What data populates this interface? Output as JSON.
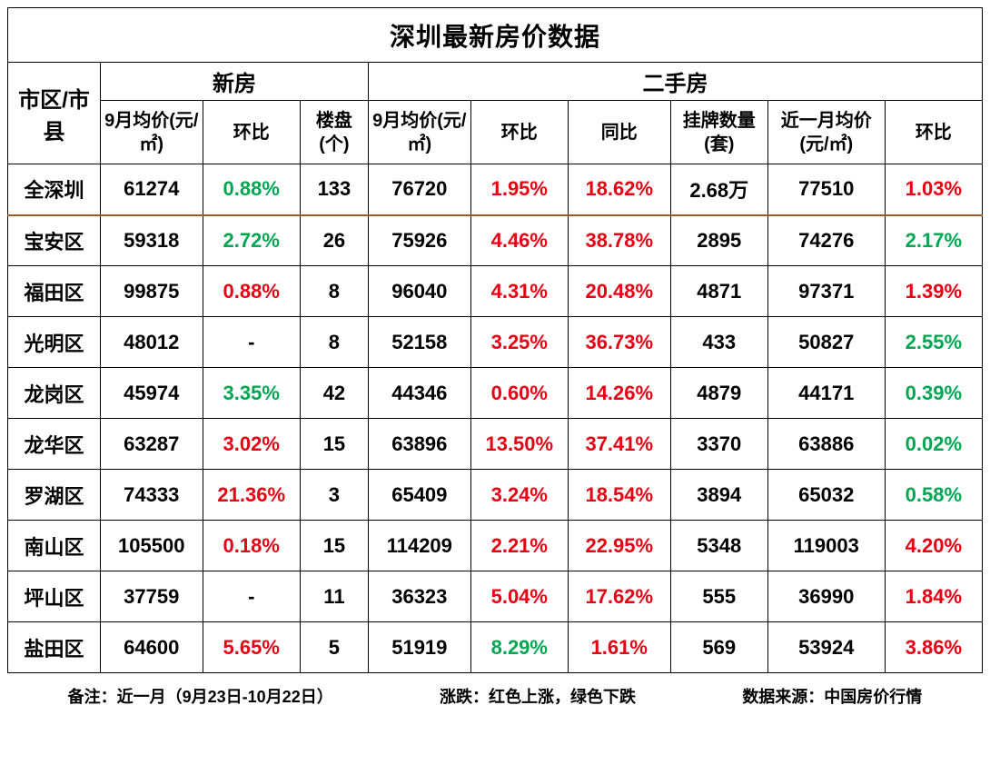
{
  "title": "深圳最新房价数据",
  "colors": {
    "up": "#e60012",
    "down": "#00a651",
    "text": "#000000",
    "border": "#000000",
    "bg": "#ffffff",
    "sep": "#9a5a2a"
  },
  "headers": {
    "district": "市区/市县",
    "group_new": "新房",
    "group_used": "二手房",
    "new_price": "9月均价(元/㎡)",
    "new_mom": "环比",
    "new_count": "楼盘(个)",
    "used_price": "9月均价(元/㎡)",
    "used_mom": "环比",
    "used_yoy": "同比",
    "used_listings": "挂牌数量(套)",
    "used_recent": "近一月均价(元/㎡)",
    "used_recent_mom": "环比"
  },
  "rows": [
    {
      "district": "全深圳",
      "new_price": "61274",
      "new_mom": {
        "v": "0.88%",
        "c": "down"
      },
      "new_count": "133",
      "used_price": "76720",
      "used_mom": {
        "v": "1.95%",
        "c": "up"
      },
      "used_yoy": {
        "v": "18.62%",
        "c": "up"
      },
      "used_listings": "2.68万",
      "used_recent": "77510",
      "used_recent_mom": {
        "v": "1.03%",
        "c": "up"
      }
    },
    {
      "district": "宝安区",
      "new_price": "59318",
      "new_mom": {
        "v": "2.72%",
        "c": "down"
      },
      "new_count": "26",
      "used_price": "75926",
      "used_mom": {
        "v": "4.46%",
        "c": "up"
      },
      "used_yoy": {
        "v": "38.78%",
        "c": "up"
      },
      "used_listings": "2895",
      "used_recent": "74276",
      "used_recent_mom": {
        "v": "2.17%",
        "c": "down"
      }
    },
    {
      "district": "福田区",
      "new_price": "99875",
      "new_mom": {
        "v": "0.88%",
        "c": "up"
      },
      "new_count": "8",
      "used_price": "96040",
      "used_mom": {
        "v": "4.31%",
        "c": "up"
      },
      "used_yoy": {
        "v": "20.48%",
        "c": "up"
      },
      "used_listings": "4871",
      "used_recent": "97371",
      "used_recent_mom": {
        "v": "1.39%",
        "c": "up"
      }
    },
    {
      "district": "光明区",
      "new_price": "48012",
      "new_mom": {
        "v": "-",
        "c": "text"
      },
      "new_count": "8",
      "used_price": "52158",
      "used_mom": {
        "v": "3.25%",
        "c": "up"
      },
      "used_yoy": {
        "v": "36.73%",
        "c": "up"
      },
      "used_listings": "433",
      "used_recent": "50827",
      "used_recent_mom": {
        "v": "2.55%",
        "c": "down"
      }
    },
    {
      "district": "龙岗区",
      "new_price": "45974",
      "new_mom": {
        "v": "3.35%",
        "c": "down"
      },
      "new_count": "42",
      "used_price": "44346",
      "used_mom": {
        "v": "0.60%",
        "c": "up"
      },
      "used_yoy": {
        "v": "14.26%",
        "c": "up"
      },
      "used_listings": "4879",
      "used_recent": "44171",
      "used_recent_mom": {
        "v": "0.39%",
        "c": "down"
      }
    },
    {
      "district": "龙华区",
      "new_price": "63287",
      "new_mom": {
        "v": "3.02%",
        "c": "up"
      },
      "new_count": "15",
      "used_price": "63896",
      "used_mom": {
        "v": "13.50%",
        "c": "up"
      },
      "used_yoy": {
        "v": "37.41%",
        "c": "up"
      },
      "used_listings": "3370",
      "used_recent": "63886",
      "used_recent_mom": {
        "v": "0.02%",
        "c": "down"
      }
    },
    {
      "district": "罗湖区",
      "new_price": "74333",
      "new_mom": {
        "v": "21.36%",
        "c": "up"
      },
      "new_count": "3",
      "used_price": "65409",
      "used_mom": {
        "v": "3.24%",
        "c": "up"
      },
      "used_yoy": {
        "v": "18.54%",
        "c": "up"
      },
      "used_listings": "3894",
      "used_recent": "65032",
      "used_recent_mom": {
        "v": "0.58%",
        "c": "down"
      }
    },
    {
      "district": "南山区",
      "new_price": "105500",
      "new_mom": {
        "v": "0.18%",
        "c": "up"
      },
      "new_count": "15",
      "used_price": "114209",
      "used_mom": {
        "v": "2.21%",
        "c": "up"
      },
      "used_yoy": {
        "v": "22.95%",
        "c": "up"
      },
      "used_listings": "5348",
      "used_recent": "119003",
      "used_recent_mom": {
        "v": "4.20%",
        "c": "up"
      }
    },
    {
      "district": "坪山区",
      "new_price": "37759",
      "new_mom": {
        "v": "-",
        "c": "text"
      },
      "new_count": "11",
      "used_price": "36323",
      "used_mom": {
        "v": "5.04%",
        "c": "up"
      },
      "used_yoy": {
        "v": "17.62%",
        "c": "up"
      },
      "used_listings": "555",
      "used_recent": "36990",
      "used_recent_mom": {
        "v": "1.84%",
        "c": "up"
      }
    },
    {
      "district": "盐田区",
      "new_price": "64600",
      "new_mom": {
        "v": "5.65%",
        "c": "up"
      },
      "new_count": "5",
      "used_price": "51919",
      "used_mom": {
        "v": "8.29%",
        "c": "down"
      },
      "used_yoy": {
        "v": "1.61%",
        "c": "up"
      },
      "used_listings": "569",
      "used_recent": "53924",
      "used_recent_mom": {
        "v": "3.86%",
        "c": "up"
      }
    }
  ],
  "footer": {
    "note": "备注：近一月（9月23日-10月22日）",
    "legend": "涨跌：红色上涨，绿色下跌",
    "source": "数据来源：中国房价行情"
  }
}
